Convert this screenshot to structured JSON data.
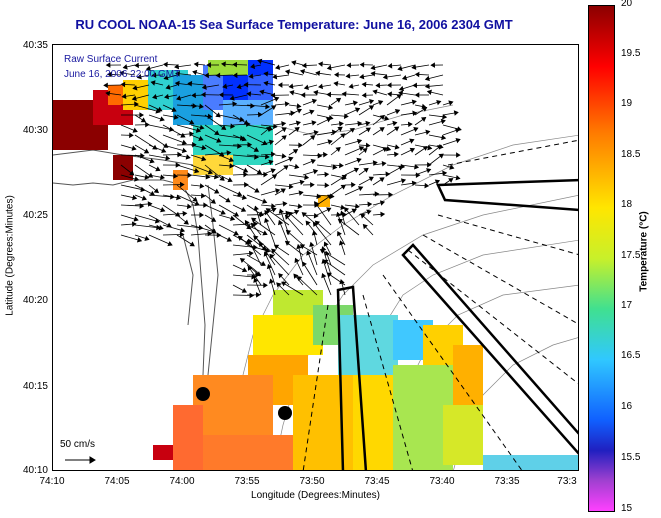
{
  "title": "RU COOL  NOAA-15  Sea Surface Temperature:  June 16, 2006 2304 GMT",
  "legend": {
    "line1": "Raw Surface Current",
    "line2": "June 16, 2006 22:00 GMT"
  },
  "scale_label": "50 cm/s",
  "axes": {
    "xlabel": "Longitude (Degrees:Minutes)",
    "ylabel": "Latitude (Degrees:Minutes)",
    "x_ticks": [
      "74:10",
      "74:05",
      "74:00",
      "73:55",
      "73:50",
      "73:45",
      "73:40",
      "73:35",
      "73:3"
    ],
    "y_ticks": [
      "40:35",
      "40:30",
      "40:25",
      "40:20",
      "40:15",
      "40:10"
    ]
  },
  "colorbar": {
    "title": "Temperature (°C)",
    "ticks": [
      "20",
      "19.5",
      "19",
      "18.5",
      "18",
      "17.5",
      "17",
      "16.5",
      "16",
      "15.5",
      "15"
    ],
    "range": [
      15,
      20
    ]
  },
  "colors": {
    "title": "#1010a0",
    "legend_text": "#1a1aa0"
  }
}
